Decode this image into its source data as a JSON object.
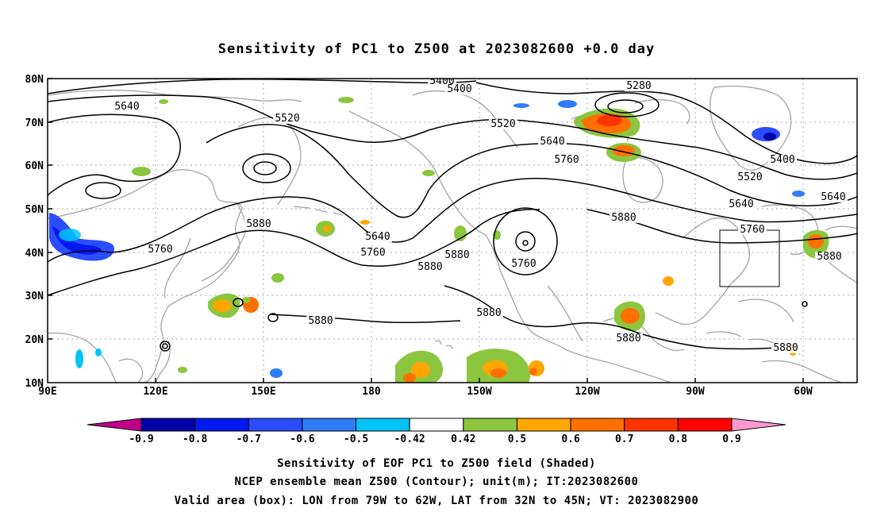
{
  "title": "Sensitivity of PC1 to Z500 at 2023082600 +0.0 day",
  "map": {
    "lat_labels": [
      "80N",
      "70N",
      "60N",
      "50N",
      "40N",
      "30N",
      "20N",
      "10N"
    ],
    "lon_labels": [
      "90E",
      "120E",
      "150E",
      "180",
      "150W",
      "120W",
      "90W",
      "60W"
    ]
  },
  "contour_labels": [
    "5400",
    "5400",
    "5280",
    "5400",
    "5520",
    "5520",
    "5520",
    "5640",
    "5640",
    "5640",
    "5640",
    "5640",
    "5760",
    "5760",
    "5760",
    "5760",
    "5760",
    "5880",
    "5880",
    "5880",
    "5880",
    "5880",
    "5880",
    "5880",
    "5880",
    "5880"
  ],
  "colorbar": {
    "labels": [
      "-0.9",
      "-0.8",
      "-0.7",
      "-0.6",
      "-0.5",
      "-0.42",
      "0.42",
      "0.5",
      "0.6",
      "0.7",
      "0.8",
      "0.9"
    ],
    "colors": [
      "#c0008b",
      "#0000a8",
      "#0019f0",
      "#2b4dff",
      "#2e7df7",
      "#00c4f7",
      "#ffffff",
      "#8bc63e",
      "#ffa500",
      "#ff7000",
      "#ff3300",
      "#ff0000",
      "#ff99cc"
    ]
  },
  "captions": [
    "Sensitivity of EOF PC1 to Z500 field (Shaded)",
    "NCEP ensemble mean Z500 (Contour); unit(m); IT:2023082600",
    "Valid area (box): LON from 79W to 62W, LAT from 32N to 45N; VT: 2023082900"
  ]
}
